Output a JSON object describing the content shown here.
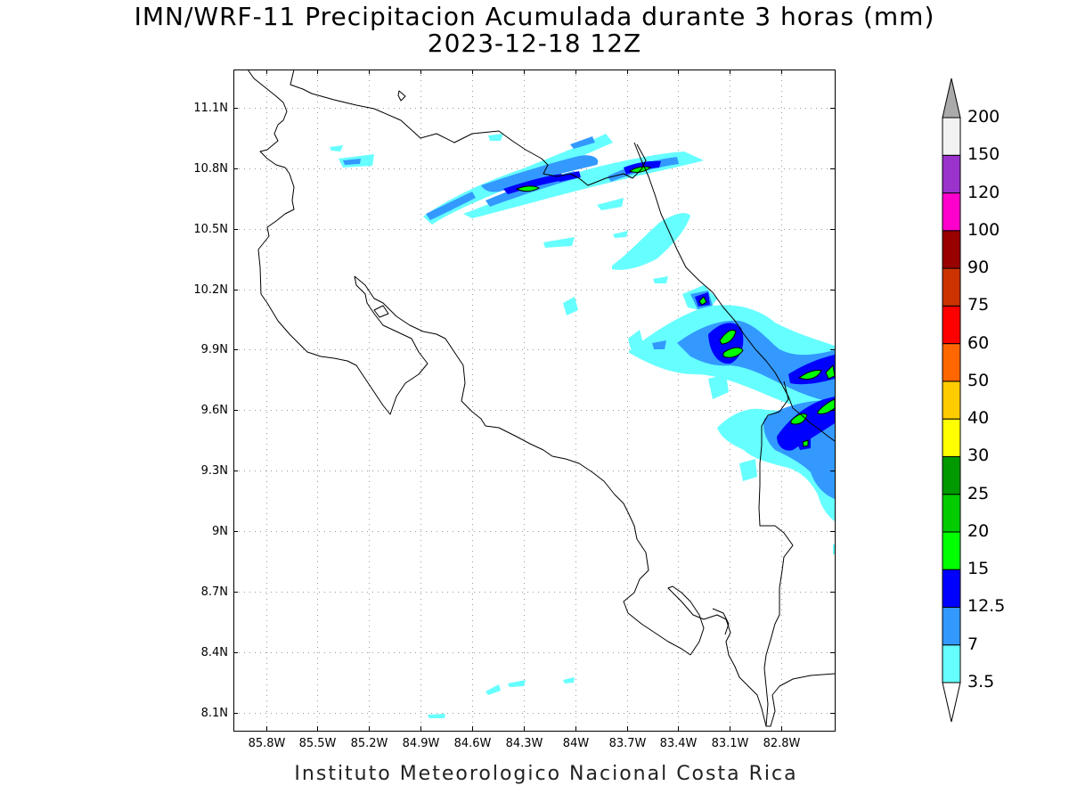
{
  "title": {
    "line1": "IMN/WRF-11 Precipitacion Acumulada durante 3 horas (mm)",
    "line2": "2023-12-18 12Z"
  },
  "footer": "Instituto Meteorologico Nacional Costa Rica",
  "axes": {
    "lon_ticks": [
      "85.8W",
      "85.5W",
      "85.2W",
      "84.9W",
      "84.6W",
      "84.3W",
      "84W",
      "83.7W",
      "83.4W",
      "83.1W",
      "82.8W"
    ],
    "lon_values": [
      -85.8,
      -85.5,
      -85.2,
      -84.9,
      -84.6,
      -84.3,
      -84.0,
      -83.7,
      -83.4,
      -83.1,
      -82.8
    ],
    "lat_ticks": [
      "11.1N",
      "10.8N",
      "10.5N",
      "10.2N",
      "9.9N",
      "9.6N",
      "9.3N",
      "9N",
      "8.7N",
      "8.4N",
      "8.1N"
    ],
    "lat_values": [
      11.1,
      10.8,
      10.5,
      10.2,
      9.9,
      9.6,
      9.3,
      9.0,
      8.7,
      8.4,
      8.1
    ],
    "lon_range": [
      -85.99,
      -82.49
    ],
    "lat_range": [
      8.01,
      11.29
    ],
    "grid": true
  },
  "colorbar": {
    "labels": [
      "3.5",
      "7",
      "12.5",
      "15",
      "20",
      "25",
      "30",
      "40",
      "50",
      "60",
      "75",
      "90",
      "100",
      "120",
      "150",
      "200"
    ],
    "colors": [
      "#66ffff",
      "#3399ff",
      "#0000ff",
      "#00ff00",
      "#00cc00",
      "#009900",
      "#ffff00",
      "#ffcc00",
      "#ff6600",
      "#ff0000",
      "#cc3300",
      "#990000",
      "#ff00cc",
      "#9933cc",
      "#f2f2f2",
      "#aaaaaa"
    ]
  }
}
